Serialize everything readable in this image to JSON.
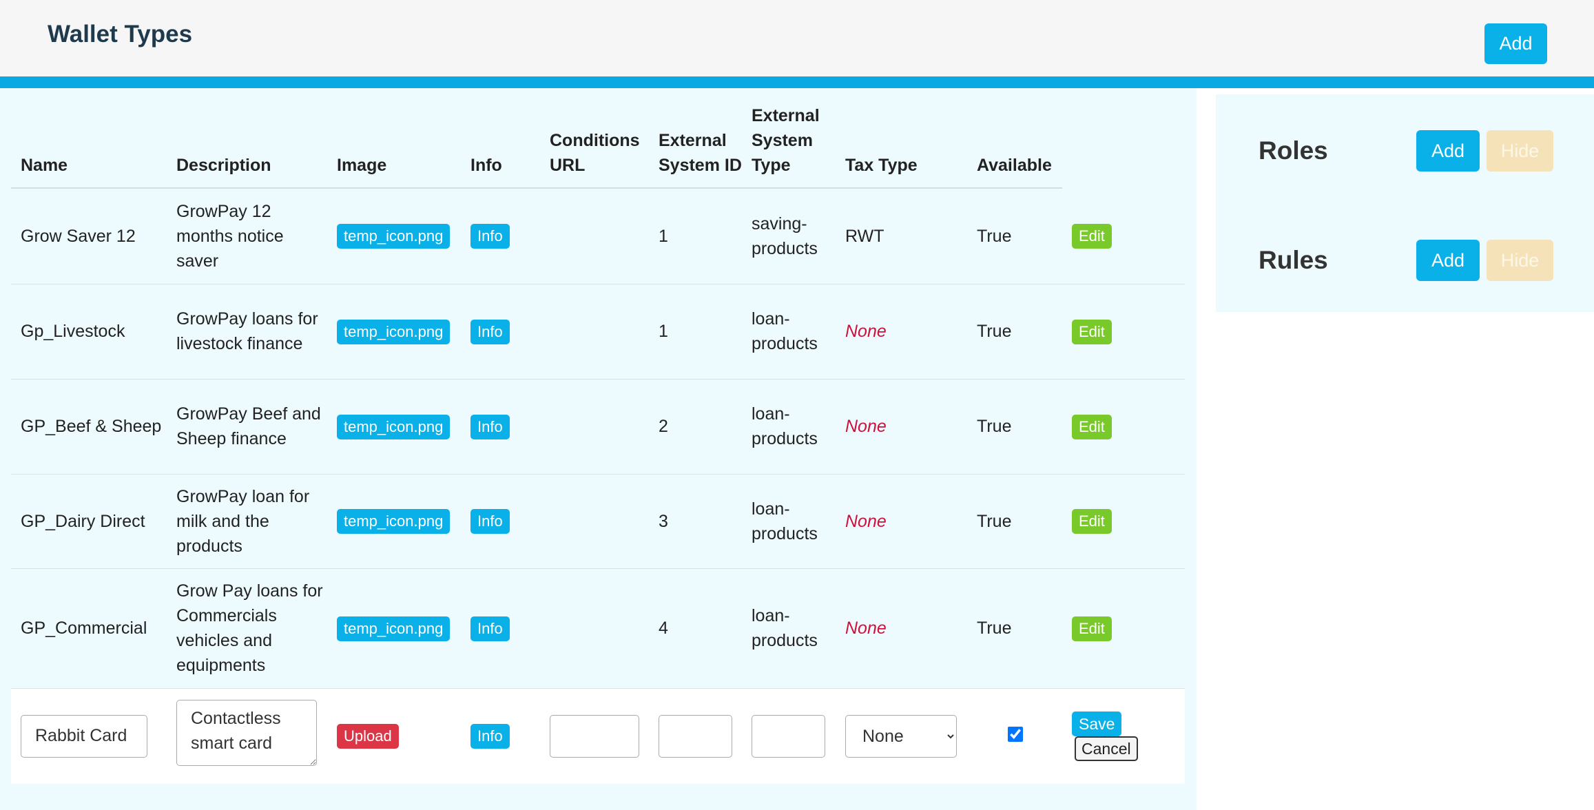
{
  "header": {
    "title": "Wallet Types",
    "add_button": "Add"
  },
  "table": {
    "columns": [
      "Name",
      "Description",
      "Image",
      "Info",
      "Conditions URL",
      "External System ID",
      "External System Type",
      "Tax Type",
      "Available"
    ],
    "rows": [
      {
        "name": "Grow Saver 12",
        "description": "GrowPay 12 months notice saver",
        "image": "temp_icon.png",
        "info": "Info",
        "external_system_id": "1",
        "external_system_type": "saving-products",
        "tax_type": "RWT",
        "available": "True",
        "action": "Edit"
      },
      {
        "name": "Gp_Livestock",
        "description": "GrowPay loans for livestock finance",
        "image": "temp_icon.png",
        "info": "Info",
        "external_system_id": "1",
        "external_system_type": "loan-products",
        "tax_type": "None",
        "available": "True",
        "action": "Edit"
      },
      {
        "name": "GP_Beef & Sheep",
        "description": "GrowPay Beef and Sheep finance",
        "image": "temp_icon.png",
        "info": "Info",
        "external_system_id": "2",
        "external_system_type": "loan-products",
        "tax_type": "None",
        "available": "True",
        "action": "Edit"
      },
      {
        "name": "GP_Dairy Direct",
        "description": "GrowPay loan for milk and the products",
        "image": "temp_icon.png",
        "info": "Info",
        "external_system_id": "3",
        "external_system_type": "loan-products",
        "tax_type": "None",
        "available": "True",
        "action": "Edit"
      },
      {
        "name": "GP_Commercial",
        "description": "Grow Pay loans for Commercials vehicles and equipments",
        "image": "temp_icon.png",
        "info": "Info",
        "external_system_id": "4",
        "external_system_type": "loan-products",
        "tax_type": "None",
        "available": "True",
        "action": "Edit"
      }
    ],
    "edit_row": {
      "name": "Rabbit Card",
      "description": "Contactless smart card",
      "upload": "Upload",
      "info": "Info",
      "tax_type": "None",
      "available": true,
      "save": "Save",
      "cancel": "Cancel"
    }
  },
  "side_panel": {
    "sections": [
      {
        "title": "Roles",
        "add": "Add",
        "hide": "Hide"
      },
      {
        "title": "Rules",
        "add": "Add",
        "hide": "Hide"
      }
    ]
  }
}
